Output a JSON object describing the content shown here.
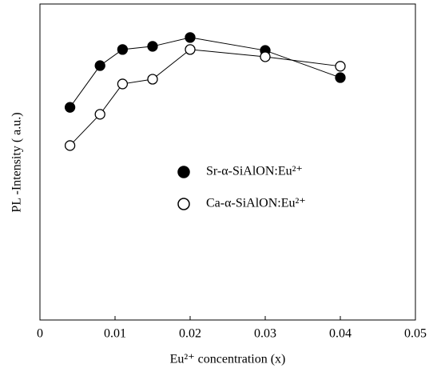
{
  "chart_data": {
    "type": "line",
    "xlabel": "Eu²⁺ concentration (x)",
    "ylabel": "PL -Intensity ( a.u.)",
    "xlim": [
      0,
      0.05
    ],
    "xticks": [
      0,
      0.01,
      0.02,
      0.03,
      0.04,
      0.05
    ],
    "ylim": [
      0,
      100
    ],
    "x": [
      0.004,
      0.008,
      0.011,
      0.015,
      0.02,
      0.03,
      0.04
    ],
    "series": [
      {
        "name": "Sr-α-SiAlON:Eu²⁺",
        "color": "#000000",
        "marker": "filled",
        "values": [
          67.3,
          80.5,
          85.6,
          86.6,
          89.4,
          85.3,
          76.7
        ]
      },
      {
        "name": "Ca-α-SiAlON:Eu²⁺",
        "color": "#000000",
        "marker": "open",
        "values": [
          55.2,
          65.1,
          74.7,
          76.2,
          85.6,
          83.3,
          80.3
        ]
      }
    ]
  }
}
